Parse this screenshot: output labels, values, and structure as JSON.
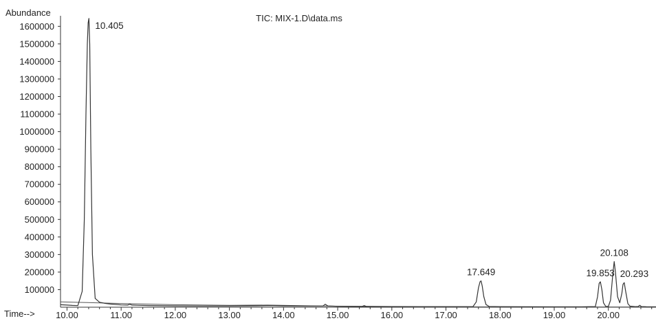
{
  "chart_data": {
    "type": "line",
    "title": "TIC: MIX-1.D\\data.ms",
    "ylabel": "Abundance",
    "xlabel": "Time-->",
    "xlim": [
      9.88,
      20.88
    ],
    "ylim": [
      0,
      1660000
    ],
    "xticks": [
      "10.00",
      "11.00",
      "12.00",
      "13.00",
      "14.00",
      "15.00",
      "16.00",
      "17.00",
      "18.00",
      "19.00",
      "20.00"
    ],
    "yticks": [
      "100000",
      "200000",
      "300000",
      "400000",
      "500000",
      "600000",
      "700000",
      "800000",
      "900000",
      "1000000",
      "1100000",
      "1200000",
      "1300000",
      "1400000",
      "1500000",
      "1600000"
    ],
    "grid": false,
    "legend": "none",
    "series": [
      {
        "x": [
          9.88,
          10.0,
          10.1,
          10.2,
          10.28,
          10.32,
          10.35,
          10.375,
          10.39,
          10.405,
          10.42,
          10.44,
          10.47,
          10.52,
          10.6,
          10.7,
          10.8,
          11.0,
          11.12,
          11.16,
          11.2,
          11.3,
          11.5,
          12.0,
          12.5,
          13.0,
          13.5,
          13.75,
          14.0,
          14.5,
          14.73,
          14.77,
          14.82,
          15.0,
          15.45,
          15.49,
          15.53,
          16.0,
          16.5,
          17.0,
          17.5,
          17.56,
          17.6,
          17.63,
          17.649,
          17.67,
          17.7,
          17.74,
          17.8,
          18.0,
          18.5,
          19.0,
          19.5,
          19.76,
          19.8,
          19.83,
          19.853,
          19.88,
          19.91,
          19.95,
          20.0,
          20.04,
          20.08,
          20.108,
          20.13,
          20.17,
          20.21,
          20.25,
          20.27,
          20.293,
          20.32,
          20.36,
          20.4,
          20.5,
          20.55,
          20.58,
          20.61,
          20.7,
          20.88
        ],
        "y": [
          14000,
          12000,
          10000,
          9000,
          90000,
          500000,
          1100000,
          1500000,
          1620000,
          1645000,
          1500000,
          900000,
          300000,
          50000,
          28000,
          22000,
          18000,
          13000,
          12000,
          17000,
          12000,
          11000,
          9500,
          7500,
          6500,
          6500,
          8000,
          9000,
          7500,
          6500,
          7000,
          17000,
          7000,
          5000,
          4500,
          9000,
          4500,
          3500,
          3000,
          3000,
          3500,
          30000,
          110000,
          145000,
          150000,
          120000,
          60000,
          15000,
          4000,
          3000,
          2500,
          2000,
          2000,
          3500,
          60000,
          135000,
          145000,
          100000,
          25000,
          5000,
          4000,
          40000,
          180000,
          260000,
          200000,
          60000,
          25000,
          80000,
          130000,
          140000,
          90000,
          20000,
          6000,
          3000,
          4000,
          11000,
          3500,
          2500,
          2000
        ]
      }
    ],
    "baseline": [
      [
        9.88,
        30000
      ],
      [
        10.3,
        27000
      ],
      [
        11.0,
        21000
      ],
      [
        12.0,
        14000
      ],
      [
        13.0,
        11000
      ],
      [
        13.7,
        12000
      ],
      [
        14.5,
        8000
      ],
      [
        15.5,
        4000
      ],
      [
        16.5,
        2500
      ],
      [
        18.0,
        2000
      ],
      [
        20.88,
        1500
      ]
    ],
    "annotations": [
      {
        "text": "10.405",
        "x": 10.405,
        "y": 1645000
      },
      {
        "text": "17.649",
        "x": 17.649,
        "y": 150000
      },
      {
        "text": "19.853",
        "x": 19.853,
        "y": 145000
      },
      {
        "text": "20.108",
        "x": 20.108,
        "y": 260000
      },
      {
        "text": "20.293",
        "x": 20.293,
        "y": 140000
      }
    ]
  }
}
